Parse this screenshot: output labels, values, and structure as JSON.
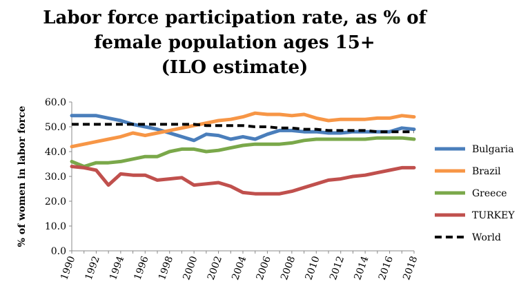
{
  "chart_data": {
    "type": "line",
    "title_lines": [
      "Labor force participation rate, as % of",
      "female population ages 15+",
      "(ILO estimate)"
    ],
    "ylabel": "% of women in labor force",
    "ylim": [
      0,
      60
    ],
    "y_ticks": [
      "0.0",
      "10.0",
      "20.0",
      "30.0",
      "40.0",
      "50.0",
      "60.0"
    ],
    "x": [
      1990,
      1991,
      1992,
      1993,
      1994,
      1995,
      1996,
      1997,
      1998,
      1999,
      2000,
      2001,
      2002,
      2003,
      2004,
      2005,
      2006,
      2007,
      2008,
      2009,
      2010,
      2011,
      2012,
      2013,
      2014,
      2015,
      2016,
      2017,
      2018
    ],
    "x_tick_labels": [
      "1990",
      "1992",
      "1994",
      "1996",
      "1998",
      "2000",
      "2002",
      "2004",
      "2006",
      "2008",
      "2010",
      "2012",
      "2014",
      "2016",
      "2018"
    ],
    "legend_position": "right",
    "series": [
      {
        "name": "Bulgaria",
        "color": "#4a7ebb",
        "dashed": false,
        "values": [
          54.5,
          54.5,
          54.5,
          53.5,
          52.5,
          51.0,
          50.0,
          49.0,
          47.5,
          46.0,
          44.5,
          47.0,
          46.5,
          45.0,
          46.0,
          45.0,
          47.0,
          48.5,
          48.5,
          48.0,
          48.0,
          47.5,
          47.5,
          48.0,
          48.0,
          48.0,
          48.0,
          49.5,
          49.0
        ]
      },
      {
        "name": "Brazil",
        "color": "#f79646",
        "dashed": false,
        "values": [
          42.0,
          43.0,
          44.0,
          45.0,
          46.0,
          47.5,
          46.5,
          47.5,
          48.5,
          49.5,
          50.5,
          51.5,
          52.5,
          53.0,
          54.0,
          55.5,
          55.0,
          55.0,
          54.5,
          55.0,
          53.5,
          52.5,
          53.0,
          53.0,
          53.0,
          53.5,
          53.5,
          54.5,
          54.0
        ]
      },
      {
        "name": "Greece",
        "color": "#7aa84a",
        "dashed": false,
        "values": [
          36.0,
          34.0,
          35.5,
          35.5,
          36.0,
          37.0,
          38.0,
          38.0,
          40.0,
          41.0,
          41.0,
          40.0,
          40.5,
          41.5,
          42.5,
          43.0,
          43.0,
          43.0,
          43.5,
          44.5,
          45.0,
          45.0,
          45.0,
          45.0,
          45.0,
          45.5,
          45.5,
          45.5,
          45.0
        ]
      },
      {
        "name": "TURKEY",
        "color": "#c0504d",
        "dashed": false,
        "values": [
          34.0,
          33.5,
          32.5,
          26.5,
          31.0,
          30.5,
          30.5,
          28.5,
          29.0,
          29.5,
          26.5,
          27.0,
          27.5,
          26.0,
          23.5,
          23.0,
          23.0,
          23.0,
          24.0,
          25.5,
          27.0,
          28.5,
          29.0,
          30.0,
          30.5,
          31.5,
          32.5,
          33.5,
          33.5
        ]
      },
      {
        "name": "World",
        "color": "#000000",
        "dashed": true,
        "values": [
          51.0,
          51.0,
          51.0,
          51.0,
          51.0,
          51.0,
          51.0,
          51.0,
          51.0,
          51.0,
          51.0,
          50.5,
          50.5,
          50.5,
          50.5,
          50.0,
          50.0,
          49.5,
          49.5,
          49.0,
          49.0,
          48.5,
          48.5,
          48.5,
          48.5,
          48.0,
          48.0,
          48.0,
          48.0
        ]
      }
    ]
  }
}
